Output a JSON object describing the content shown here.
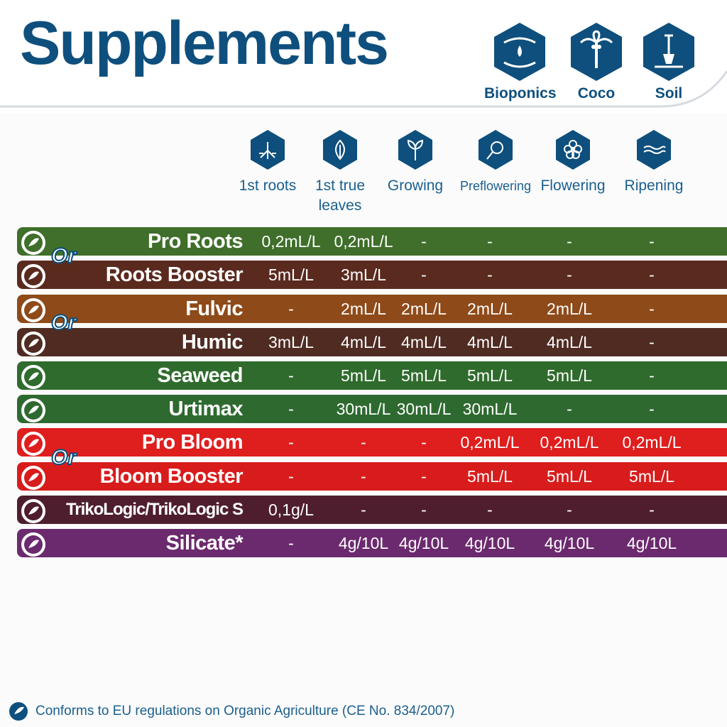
{
  "title": "Supplements",
  "media": [
    {
      "label": "Bioponics",
      "icon": "hands-water-icon"
    },
    {
      "label": "Coco",
      "icon": "palm-tree-icon"
    },
    {
      "label": "Soil",
      "icon": "shovel-icon"
    }
  ],
  "stages": [
    {
      "line1": "1st roots",
      "line2": "",
      "icon": "roots-icon"
    },
    {
      "line1": "1st true",
      "line2": "leaves",
      "icon": "leaf-icon"
    },
    {
      "line1": "Growing",
      "line2": "",
      "icon": "sprout-icon"
    },
    {
      "line1": "Preflowering",
      "line2": "",
      "icon": "bud-icon"
    },
    {
      "line1": "Flowering",
      "line2": "",
      "icon": "flower-icon"
    },
    {
      "line1": "Ripening",
      "line2": "",
      "icon": "ripening-icon"
    }
  ],
  "or_label": "Or",
  "products": [
    {
      "name": "Pro Roots",
      "color": "#3f6f2a",
      "doses": [
        "0,2mL/L",
        "0,2mL/L",
        "-",
        "-",
        "-",
        "-"
      ]
    },
    {
      "name": "Roots Booster",
      "color": "#5a2a1e",
      "doses": [
        "5mL/L",
        "3mL/L",
        "-",
        "-",
        "-",
        "-"
      ]
    },
    {
      "name": "Fulvic",
      "color": "#8e4a19",
      "doses": [
        "-",
        "2mL/L",
        "2mL/L",
        "2mL/L",
        "2mL/L",
        "-"
      ]
    },
    {
      "name": "Humic",
      "color": "#4f2b21",
      "doses": [
        "3mL/L",
        "4mL/L",
        "4mL/L",
        "4mL/L",
        "4mL/L",
        "-"
      ]
    },
    {
      "name": "Seaweed",
      "color": "#2f6b2c",
      "doses": [
        "-",
        "5mL/L",
        "5mL/L",
        "5mL/L",
        "5mL/L",
        "-"
      ]
    },
    {
      "name": "Urtimax",
      "color": "#2e6a30",
      "doses": [
        "-",
        "30mL/L",
        "30mL/L",
        "30mL/L",
        "-",
        "-"
      ]
    },
    {
      "name": "Pro Bloom",
      "color": "#df1e1e",
      "doses": [
        "-",
        "-",
        "-",
        "0,2mL/L",
        "0,2mL/L",
        "0,2mL/L"
      ]
    },
    {
      "name": "Bloom Booster",
      "color": "#d81c1c",
      "doses": [
        "-",
        "-",
        "-",
        "5mL/L",
        "5mL/L",
        "5mL/L"
      ]
    },
    {
      "name": "TrikoLogic/TrikoLogic S",
      "color": "#4f1e2e",
      "doses": [
        "0,1g/L",
        "-",
        "-",
        "-",
        "-",
        "-"
      ]
    },
    {
      "name": "Silicate*",
      "color": "#6b2a6e",
      "doses": [
        "-",
        "4g/10L",
        "4g/10L",
        "4g/10L",
        "4g/10L",
        "4g/10L"
      ]
    }
  ],
  "footer": {
    "text": "Conforms to EU regulations on Organic Agriculture (CE No. 834/2007)"
  }
}
